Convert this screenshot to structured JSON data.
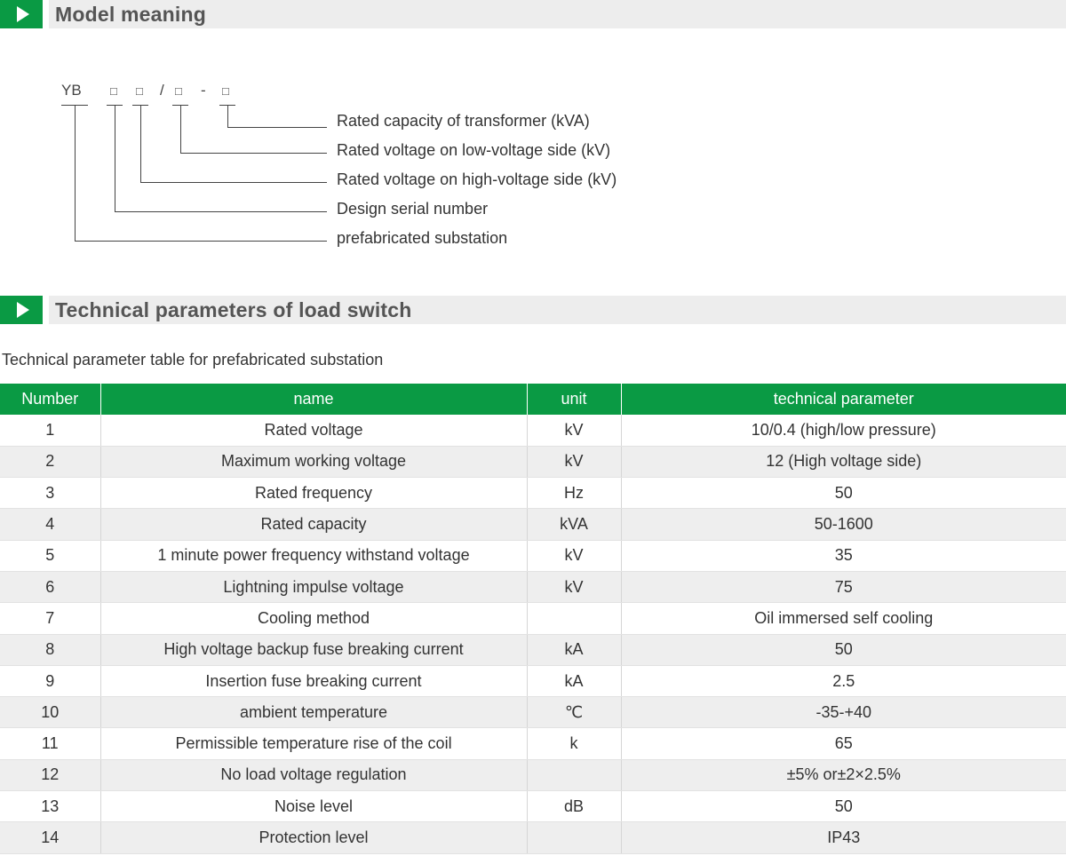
{
  "sections": {
    "model_title": "Model meaning",
    "tech_title": "Technical parameters of load switch"
  },
  "model_code": {
    "prefix": "YB",
    "slash": "/",
    "dash": "-",
    "box_glyph": "□",
    "legend": [
      "Rated capacity of transformer (kVA)",
      "Rated voltage on low-voltage side (kV)",
      "Rated voltage on high-voltage side (kV)",
      "Design serial number",
      "prefabricated substation"
    ]
  },
  "caption": "Technical parameter table for prefabricated substation",
  "table": {
    "headers": [
      "Number",
      "name",
      "unit",
      "technical parameter"
    ],
    "rows": [
      [
        "1",
        "Rated voltage",
        "kV",
        "10/0.4 (high/low pressure)"
      ],
      [
        "2",
        "Maximum working voltage",
        "kV",
        "12 (High voltage side)"
      ],
      [
        "3",
        "Rated frequency",
        "Hz",
        "50"
      ],
      [
        "4",
        "Rated capacity",
        "kVA",
        "50-1600"
      ],
      [
        "5",
        "1 minute power frequency withstand voltage",
        "kV",
        "35"
      ],
      [
        "6",
        "Lightning impulse voltage",
        "kV",
        "75"
      ],
      [
        "7",
        "Cooling method",
        "",
        "Oil immersed self cooling"
      ],
      [
        "8",
        "High voltage backup fuse breaking current",
        "kA",
        "50"
      ],
      [
        "9",
        "Insertion fuse breaking current",
        "kA",
        "2.5"
      ],
      [
        "10",
        "ambient temperature",
        "℃",
        "-35-+40"
      ],
      [
        "11",
        "Permissible temperature rise of the coil",
        "k",
        "65"
      ],
      [
        "12",
        "No load voltage regulation",
        "",
        "±5% or±2×2.5%"
      ],
      [
        "13",
        "Noise level",
        "dB",
        "50"
      ],
      [
        "14",
        "Protection level",
        "",
        "IP43"
      ]
    ]
  },
  "colors": {
    "accent": "#0a9a44",
    "header_bar": "#ededed",
    "row_alt": "#eeeeee"
  },
  "icons": [
    "play-icon"
  ]
}
